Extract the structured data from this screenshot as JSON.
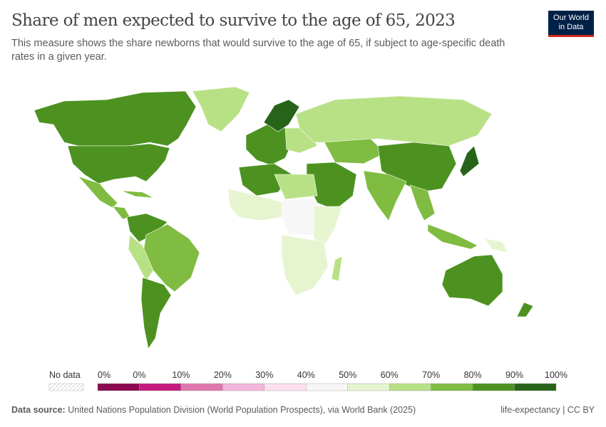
{
  "title": "Share of men expected to survive to the age of 65, 2023",
  "subtitle": "This measure shows the share newborns that would survive to the age of 65, if subject to age-specific death rates in a given year.",
  "logo": {
    "line1": "Our World",
    "line2": "in Data"
  },
  "legend": {
    "no_data_label": "No data",
    "labels": [
      "0%",
      "0%",
      "10%",
      "20%",
      "30%",
      "40%",
      "50%",
      "60%",
      "70%",
      "80%",
      "90%",
      "100%"
    ],
    "colors": [
      "#8b0a50",
      "#c51b7d",
      "#de77ae",
      "#f1b6da",
      "#fde0ef",
      "#f7f7f7",
      "#e6f5d0",
      "#b8e186",
      "#7fbc41",
      "#4d9221",
      "#276419"
    ]
  },
  "footer": {
    "source_label": "Data source:",
    "source_text": "United Nations Population Division (World Population Prospects), via World Bank (2025)",
    "right": "life-expectancy | CC BY"
  }
}
